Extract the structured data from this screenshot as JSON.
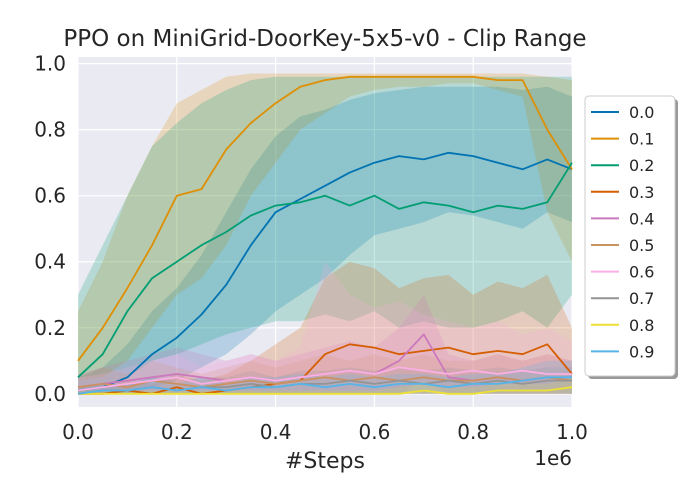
{
  "chart_data": {
    "type": "line",
    "title": "PPO on MiniGrid-DoorKey-5x5-v0 - Clip Range",
    "xlabel": "#Steps",
    "x_scale_label": "1e6",
    "ylabel": "",
    "xlim": [
      0.0,
      1.0
    ],
    "ylim": [
      -0.04,
      1.02
    ],
    "x_ticks": [
      "0.0",
      "0.2",
      "0.4",
      "0.6",
      "0.8",
      "1.0"
    ],
    "y_ticks": [
      "0.0",
      "0.2",
      "0.4",
      "0.6",
      "0.8",
      "1.0"
    ],
    "grid": true,
    "legend_position": "right",
    "x": [
      0.0,
      0.05,
      0.1,
      0.15,
      0.2,
      0.25,
      0.3,
      0.35,
      0.4,
      0.45,
      0.5,
      0.55,
      0.6,
      0.65,
      0.7,
      0.75,
      0.8,
      0.85,
      0.9,
      0.95,
      1.0
    ],
    "series": [
      {
        "name": "0.0",
        "color": "#0173b2",
        "values": [
          0.01,
          0.02,
          0.05,
          0.12,
          0.17,
          0.24,
          0.33,
          0.45,
          0.55,
          0.59,
          0.63,
          0.67,
          0.7,
          0.72,
          0.71,
          0.73,
          0.72,
          0.7,
          0.68,
          0.71,
          0.68
        ],
        "lower": [
          0.0,
          0.0,
          0.0,
          0.02,
          0.04,
          0.08,
          0.12,
          0.18,
          0.25,
          0.3,
          0.35,
          0.42,
          0.48,
          0.5,
          0.52,
          0.55,
          0.54,
          0.52,
          0.5,
          0.55,
          0.52
        ],
        "upper": [
          0.05,
          0.08,
          0.15,
          0.25,
          0.32,
          0.42,
          0.55,
          0.68,
          0.78,
          0.84,
          0.86,
          0.89,
          0.91,
          0.92,
          0.93,
          0.93,
          0.93,
          0.93,
          0.92,
          0.93,
          0.9
        ]
      },
      {
        "name": "0.1",
        "color": "#de8f05",
        "values": [
          0.1,
          0.2,
          0.32,
          0.45,
          0.6,
          0.62,
          0.74,
          0.82,
          0.88,
          0.93,
          0.95,
          0.96,
          0.96,
          0.96,
          0.96,
          0.96,
          0.96,
          0.95,
          0.95,
          0.8,
          0.68
        ],
        "lower": [
          0.04,
          0.05,
          0.1,
          0.2,
          0.3,
          0.35,
          0.45,
          0.6,
          0.7,
          0.8,
          0.85,
          0.9,
          0.92,
          0.93,
          0.93,
          0.94,
          0.94,
          0.92,
          0.9,
          0.55,
          0.4
        ],
        "upper": [
          0.25,
          0.4,
          0.6,
          0.75,
          0.88,
          0.92,
          0.96,
          0.97,
          0.97,
          0.97,
          0.97,
          0.97,
          0.97,
          0.97,
          0.97,
          0.97,
          0.97,
          0.97,
          0.97,
          0.96,
          0.95
        ]
      },
      {
        "name": "0.2",
        "color": "#029e73",
        "values": [
          0.05,
          0.12,
          0.25,
          0.35,
          0.4,
          0.45,
          0.49,
          0.54,
          0.57,
          0.58,
          0.6,
          0.57,
          0.6,
          0.56,
          0.58,
          0.57,
          0.55,
          0.57,
          0.56,
          0.58,
          0.7
        ],
        "lower": [
          0.0,
          0.02,
          0.05,
          0.1,
          0.12,
          0.15,
          0.18,
          0.2,
          0.22,
          0.22,
          0.24,
          0.22,
          0.25,
          0.2,
          0.22,
          0.2,
          0.2,
          0.22,
          0.25,
          0.2,
          0.3
        ],
        "upper": [
          0.3,
          0.45,
          0.6,
          0.75,
          0.82,
          0.88,
          0.92,
          0.95,
          0.96,
          0.96,
          0.96,
          0.96,
          0.96,
          0.96,
          0.96,
          0.96,
          0.96,
          0.96,
          0.96,
          0.96,
          0.96
        ]
      },
      {
        "name": "0.3",
        "color": "#d55e00",
        "values": [
          0.0,
          0.0,
          0.01,
          0.0,
          0.02,
          0.0,
          0.01,
          0.02,
          0.03,
          0.04,
          0.12,
          0.15,
          0.14,
          0.12,
          0.13,
          0.14,
          0.12,
          0.13,
          0.12,
          0.15,
          0.06
        ],
        "lower": [
          0.0,
          0.0,
          0.0,
          0.0,
          0.0,
          0.0,
          0.0,
          0.0,
          0.0,
          0.0,
          0.0,
          0.0,
          0.0,
          0.0,
          0.0,
          0.0,
          0.0,
          0.0,
          0.0,
          0.0,
          0.0
        ],
        "upper": [
          0.02,
          0.02,
          0.04,
          0.03,
          0.06,
          0.04,
          0.06,
          0.1,
          0.15,
          0.2,
          0.35,
          0.4,
          0.38,
          0.32,
          0.35,
          0.36,
          0.3,
          0.34,
          0.32,
          0.36,
          0.2
        ]
      },
      {
        "name": "0.4",
        "color": "#cc78bc",
        "values": [
          0.02,
          0.03,
          0.04,
          0.05,
          0.06,
          0.05,
          0.04,
          0.05,
          0.04,
          0.05,
          0.06,
          0.07,
          0.06,
          0.1,
          0.18,
          0.05,
          0.04,
          0.05,
          0.04,
          0.05,
          0.04
        ],
        "lower": [
          0.0,
          0.0,
          0.0,
          0.0,
          0.0,
          0.0,
          0.0,
          0.0,
          0.0,
          0.0,
          0.0,
          0.0,
          0.0,
          0.0,
          0.04,
          0.0,
          0.0,
          0.0,
          0.0,
          0.0,
          0.0
        ],
        "upper": [
          0.06,
          0.08,
          0.1,
          0.12,
          0.14,
          0.12,
          0.1,
          0.12,
          0.1,
          0.12,
          0.14,
          0.16,
          0.14,
          0.2,
          0.3,
          0.12,
          0.1,
          0.12,
          0.1,
          0.12,
          0.1
        ]
      },
      {
        "name": "0.5",
        "color": "#ca9161",
        "values": [
          0.02,
          0.03,
          0.02,
          0.04,
          0.03,
          0.02,
          0.03,
          0.04,
          0.03,
          0.04,
          0.05,
          0.04,
          0.05,
          0.04,
          0.05,
          0.04,
          0.04,
          0.05,
          0.04,
          0.05,
          0.04
        ],
        "lower": [
          0.0,
          0.0,
          0.0,
          0.0,
          0.0,
          0.0,
          0.0,
          0.0,
          0.0,
          0.0,
          0.0,
          0.0,
          0.0,
          0.0,
          0.0,
          0.0,
          0.0,
          0.0,
          0.0,
          0.0,
          0.0
        ],
        "upper": [
          0.05,
          0.08,
          0.06,
          0.1,
          0.08,
          0.06,
          0.08,
          0.1,
          0.08,
          0.1,
          0.12,
          0.1,
          0.12,
          0.1,
          0.12,
          0.1,
          0.1,
          0.12,
          0.1,
          0.12,
          0.1
        ]
      },
      {
        "name": "0.6",
        "color": "#fbafe4",
        "values": [
          0.01,
          0.02,
          0.03,
          0.04,
          0.05,
          0.03,
          0.04,
          0.05,
          0.04,
          0.05,
          0.06,
          0.07,
          0.06,
          0.08,
          0.07,
          0.06,
          0.07,
          0.06,
          0.07,
          0.06,
          0.06
        ],
        "lower": [
          0.0,
          0.0,
          0.0,
          0.0,
          0.0,
          0.0,
          0.0,
          0.0,
          0.0,
          0.0,
          0.0,
          0.0,
          0.0,
          0.0,
          0.0,
          0.0,
          0.0,
          0.0,
          0.0,
          0.0,
          0.0
        ],
        "upper": [
          0.05,
          0.06,
          0.08,
          0.1,
          0.12,
          0.08,
          0.1,
          0.12,
          0.1,
          0.14,
          0.4,
          0.3,
          0.26,
          0.28,
          0.24,
          0.22,
          0.2,
          0.22,
          0.18,
          0.2,
          0.16
        ]
      },
      {
        "name": "0.7",
        "color": "#949494",
        "values": [
          0.0,
          0.01,
          0.01,
          0.02,
          0.01,
          0.02,
          0.02,
          0.03,
          0.02,
          0.03,
          0.03,
          0.04,
          0.03,
          0.04,
          0.03,
          0.04,
          0.03,
          0.04,
          0.03,
          0.04,
          0.04
        ],
        "lower": [
          0.0,
          0.0,
          0.0,
          0.0,
          0.0,
          0.0,
          0.0,
          0.0,
          0.0,
          0.0,
          0.0,
          0.0,
          0.0,
          0.0,
          0.0,
          0.0,
          0.0,
          0.0,
          0.0,
          0.0,
          0.0
        ],
        "upper": [
          0.02,
          0.03,
          0.03,
          0.05,
          0.04,
          0.05,
          0.05,
          0.07,
          0.05,
          0.07,
          0.07,
          0.08,
          0.07,
          0.08,
          0.07,
          0.08,
          0.07,
          0.08,
          0.07,
          0.08,
          0.08
        ]
      },
      {
        "name": "0.8",
        "color": "#ece133",
        "values": [
          0.0,
          0.0,
          0.0,
          0.0,
          0.0,
          0.0,
          0.0,
          0.0,
          0.0,
          0.0,
          0.0,
          0.0,
          0.0,
          0.0,
          0.01,
          0.0,
          0.0,
          0.01,
          0.01,
          0.01,
          0.02
        ],
        "lower": [
          0.0,
          0.0,
          0.0,
          0.0,
          0.0,
          0.0,
          0.0,
          0.0,
          0.0,
          0.0,
          0.0,
          0.0,
          0.0,
          0.0,
          0.0,
          0.0,
          0.0,
          0.0,
          0.0,
          0.0,
          0.0
        ],
        "upper": [
          0.01,
          0.01,
          0.01,
          0.01,
          0.01,
          0.01,
          0.01,
          0.01,
          0.01,
          0.01,
          0.01,
          0.01,
          0.01,
          0.02,
          0.03,
          0.02,
          0.02,
          0.03,
          0.03,
          0.03,
          0.05
        ]
      },
      {
        "name": "0.9",
        "color": "#56b4e9",
        "values": [
          0.0,
          0.01,
          0.01,
          0.02,
          0.01,
          0.02,
          0.01,
          0.02,
          0.02,
          0.03,
          0.02,
          0.03,
          0.02,
          0.03,
          0.03,
          0.02,
          0.03,
          0.03,
          0.04,
          0.05,
          0.05
        ],
        "lower": [
          0.0,
          0.0,
          0.0,
          0.0,
          0.0,
          0.0,
          0.0,
          0.0,
          0.0,
          0.0,
          0.0,
          0.0,
          0.0,
          0.0,
          0.0,
          0.0,
          0.0,
          0.0,
          0.0,
          0.0,
          0.0
        ],
        "upper": [
          0.02,
          0.03,
          0.03,
          0.05,
          0.03,
          0.05,
          0.03,
          0.05,
          0.05,
          0.06,
          0.05,
          0.06,
          0.05,
          0.06,
          0.06,
          0.05,
          0.06,
          0.06,
          0.08,
          0.1,
          0.1
        ]
      }
    ]
  }
}
